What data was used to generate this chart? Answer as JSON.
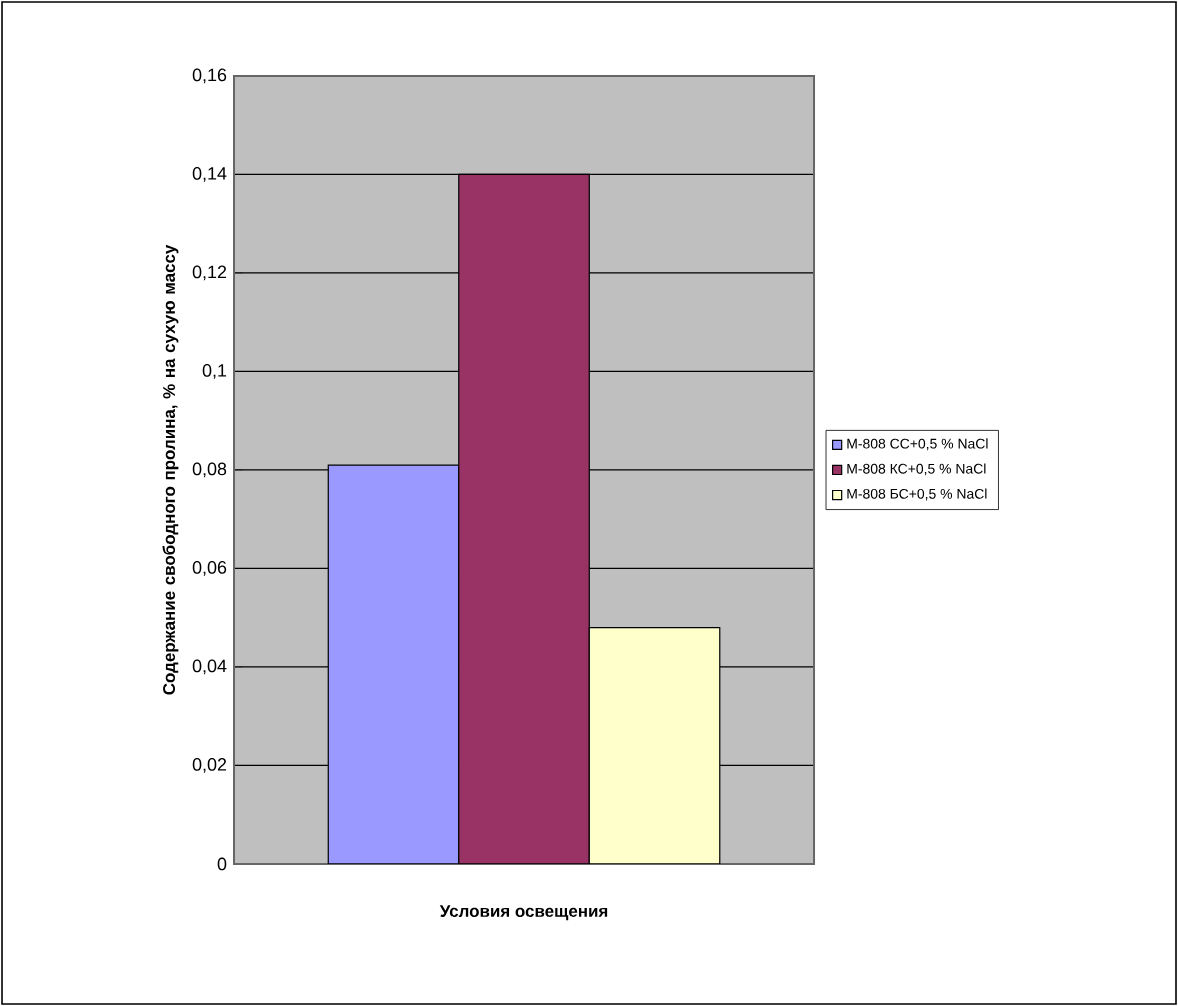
{
  "chart_data": {
    "type": "bar",
    "xlabel": "Условия освещения",
    "ylabel": "Содержание свободного пролина, % на сухую массу",
    "categories": [
      null
    ],
    "series": [
      {
        "name": "M-808 СС+0,5 % NaCl",
        "color": "#9999ff",
        "values": [
          0.081
        ]
      },
      {
        "name": "M-808 КС+0,5 % NaCl",
        "color": "#993366",
        "values": [
          0.14
        ]
      },
      {
        "name": "M-808 БС+0,5 % NaCl",
        "color": "#ffffcc",
        "values": [
          0.048
        ]
      }
    ],
    "ylim": [
      0,
      0.16
    ],
    "yticks": [
      0,
      {
        "value": 0.02,
        "label": "0,02"
      },
      {
        "value": 0.04,
        "label": "0,04"
      },
      {
        "value": 0.06,
        "label": "0,06"
      },
      {
        "value": 0.08,
        "label": "0,08"
      },
      {
        "value": 0.1,
        "label": "0,1"
      },
      {
        "value": 0.12,
        "label": "0,12"
      },
      {
        "value": 0.14,
        "label": "0,14"
      },
      {
        "value": 0.16,
        "label": "0,16"
      }
    ],
    "grid": "y",
    "legend": "right"
  }
}
